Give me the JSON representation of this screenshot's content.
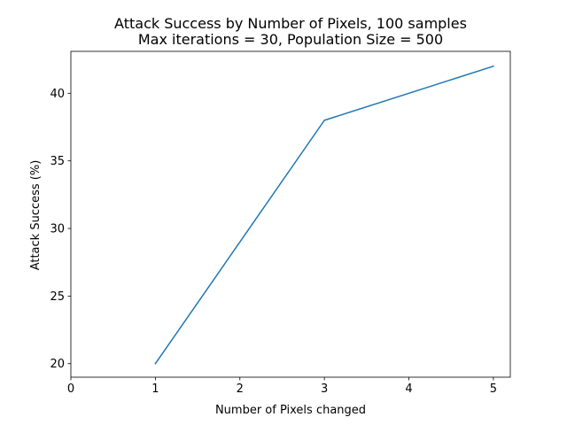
{
  "chart_data": {
    "type": "line",
    "title_line1": "Attack Success by Number of Pixels, 100 samples",
    "title_line2": "Max iterations = 30, Population Size = 500",
    "xlabel": "Number of Pixels changed",
    "ylabel": "Attack Success (%)",
    "xlim": [
      0,
      5.2
    ],
    "ylim": [
      19.0,
      43.1
    ],
    "xticks": [
      0,
      1,
      2,
      3,
      4,
      5
    ],
    "yticks": [
      20,
      25,
      30,
      35,
      40
    ],
    "grid": false,
    "series": [
      {
        "x": [
          1,
          3,
          5
        ],
        "y": [
          20,
          38,
          42
        ],
        "color": "#1f77b4"
      }
    ]
  }
}
